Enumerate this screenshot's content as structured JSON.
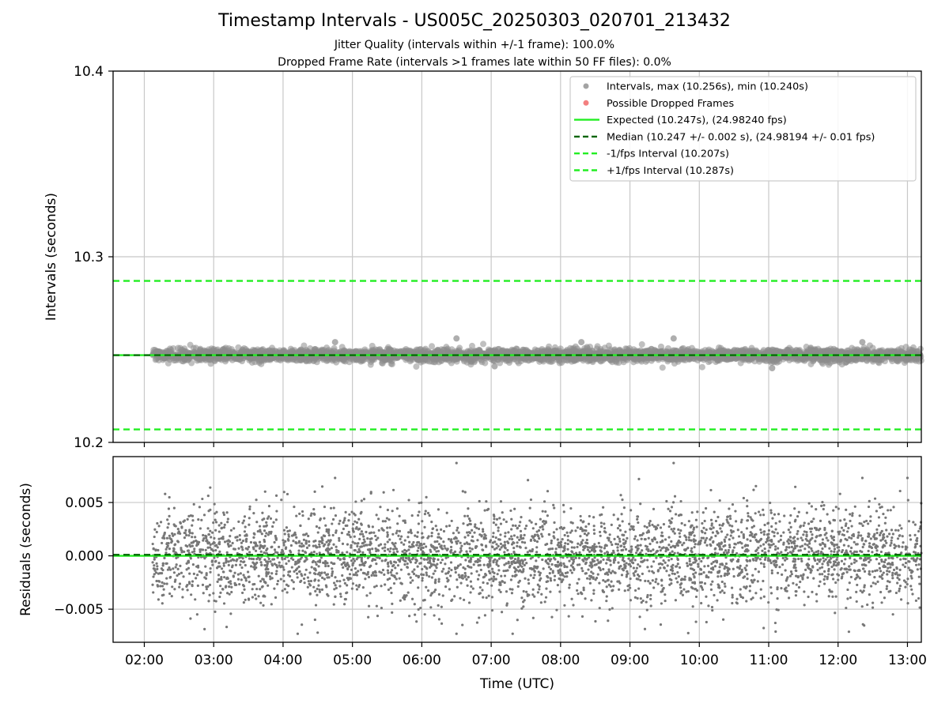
{
  "title": "Timestamp Intervals - US005C_20250303_020701_213432",
  "subtitle_lines": [
    "Jitter Quality (intervals within +/-1 frame): 100.0%",
    "Dropped Frame Rate (intervals >1 frames late within 50 FF files): 0.0%"
  ],
  "chart_data": [
    {
      "type": "scatter",
      "panel": "intervals",
      "ylabel": "Intervals (seconds)",
      "ylim": [
        10.2,
        10.4
      ],
      "yticks": [
        10.2,
        10.3,
        10.4
      ],
      "ytick_labels": [
        "10.2",
        "10.3",
        "10.4"
      ],
      "xlim_hours": [
        1.55,
        13.2
      ],
      "grid": true,
      "legend_position": "top-right",
      "legend": [
        {
          "label": "Intervals, max (10.256s), min (10.240s)",
          "kind": "marker",
          "color": "#8c8c8c"
        },
        {
          "label": "Possible Dropped Frames",
          "kind": "marker",
          "color": "#f06060"
        },
        {
          "label": "Expected (10.247s), (24.98240 fps)",
          "kind": "line-solid",
          "color": "#22ee22"
        },
        {
          "label": "Median (10.247 +/- 0.002 s), (24.98194 +/- 0.01 fps)",
          "kind": "line-dashed",
          "color": "#006400"
        },
        {
          "label": "-1/fps Interval (10.207s)",
          "kind": "line-dashed",
          "color": "#22ee22"
        },
        {
          "label": "+1/fps Interval (10.287s)",
          "kind": "line-dashed",
          "color": "#22ee22"
        }
      ],
      "reference_lines": {
        "expected": 10.247,
        "median": 10.247,
        "minus_one_frame": 10.207,
        "plus_one_frame": 10.287
      },
      "series": [
        {
          "name": "Intervals, max (10.256s), min (10.240s)",
          "count": 3900,
          "x_start": 2.12,
          "x_end": 13.2,
          "center": 10.247,
          "spread": 0.002,
          "min": 10.24,
          "max": 10.256,
          "color": "#8c8c8c"
        }
      ],
      "notable_points": [
        {
          "x": 6.5,
          "y": 10.256
        },
        {
          "x": 9.63,
          "y": 10.256
        },
        {
          "x": 4.75,
          "y": 10.254
        },
        {
          "x": 12.35,
          "y": 10.254
        },
        {
          "x": 8.3,
          "y": 10.254
        },
        {
          "x": 11.05,
          "y": 10.24
        },
        {
          "x": 7.05,
          "y": 10.241
        }
      ]
    },
    {
      "type": "scatter",
      "panel": "residuals",
      "ylabel": "Residuals (seconds)",
      "ylim": [
        -0.0081,
        0.0093
      ],
      "yticks": [
        -0.005,
        0.0,
        0.005
      ],
      "ytick_labels": [
        "−0.005",
        "0.000",
        "0.005"
      ],
      "xlabel": "Time (UTC)",
      "xticks": [
        2,
        3,
        4,
        5,
        6,
        7,
        8,
        9,
        10,
        11,
        12,
        13
      ],
      "xtick_labels": [
        "02:00",
        "03:00",
        "04:00",
        "05:00",
        "06:00",
        "07:00",
        "08:00",
        "09:00",
        "10:00",
        "11:00",
        "12:00",
        "13:00"
      ],
      "grid": true,
      "reference_lines": {
        "zero": 0.0,
        "median": 0.0001
      },
      "series": [
        {
          "name": "Residuals",
          "count": 3900,
          "x_start": 2.12,
          "x_end": 13.2,
          "center": 0.0,
          "spread": 0.0022,
          "min": -0.0073,
          "max": 0.0087,
          "color": "#777777"
        }
      ],
      "notable_points": [
        {
          "x": 6.5,
          "y": 0.0087
        },
        {
          "x": 9.63,
          "y": 0.0087
        },
        {
          "x": 7.53,
          "y": 0.0071
        },
        {
          "x": 9.13,
          "y": 0.0072
        },
        {
          "x": 4.75,
          "y": 0.0073
        },
        {
          "x": 12.35,
          "y": 0.0073
        },
        {
          "x": 13.0,
          "y": 0.0073
        },
        {
          "x": 6.5,
          "y": -0.0073
        },
        {
          "x": 11.1,
          "y": -0.0071
        },
        {
          "x": 2.3,
          "y": 0.0058
        },
        {
          "x": 2.95,
          "y": 0.0064
        }
      ]
    }
  ]
}
